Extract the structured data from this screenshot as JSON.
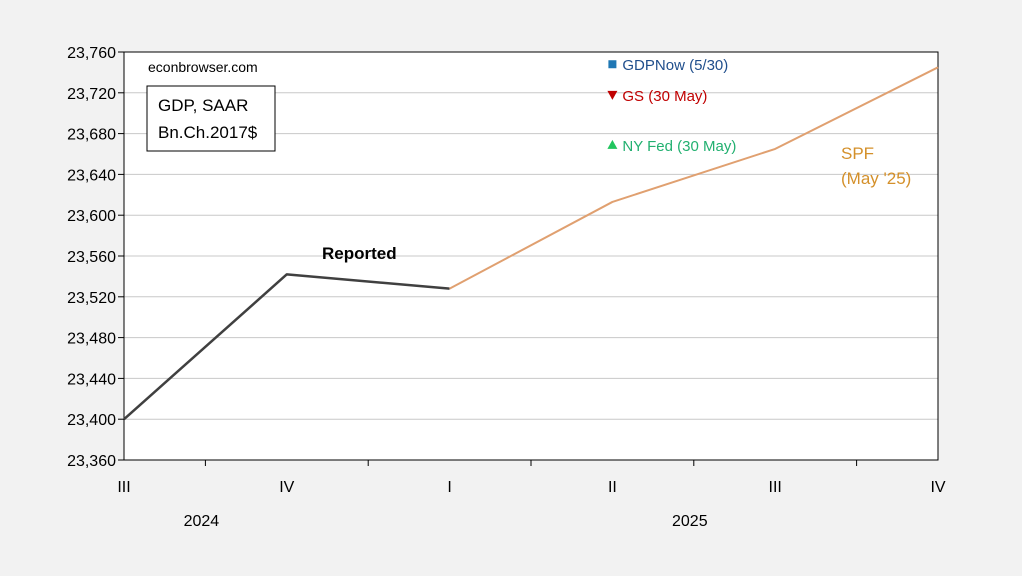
{
  "chart_data": {
    "type": "line",
    "title": "",
    "xlabel": "",
    "ylabel": "",
    "watermark": "econbrowser.com",
    "legend_box": {
      "line1": "GDP, SAAR",
      "line2": "Bn.Ch.2017$"
    },
    "ylim": [
      23360,
      23760
    ],
    "yticks": [
      23360,
      23400,
      23440,
      23480,
      23520,
      23560,
      23600,
      23640,
      23680,
      23720,
      23760
    ],
    "ytick_labels": [
      "23,360",
      "23,400",
      "23,440",
      "23,480",
      "23,520",
      "23,560",
      "23,600",
      "23,640",
      "23,680",
      "23,720",
      "23,760"
    ],
    "quarters": [
      "III",
      "IV",
      "I",
      "II",
      "III",
      "IV"
    ],
    "years": [
      {
        "label": "2024",
        "center_index": 0.5
      },
      {
        "label": "2025",
        "center_index": 3.5
      }
    ],
    "grid": {
      "horizontal": true,
      "vertical": false
    },
    "series": [
      {
        "name": "Reported",
        "color": "#404040",
        "x_index": [
          0,
          1,
          2
        ],
        "values": [
          23400,
          23542,
          23528
        ]
      },
      {
        "name": "SPF",
        "name_line2": "(May '25)",
        "color": "#e0a070",
        "label_color": "#d4902a",
        "x_index": [
          2,
          3,
          4,
          5
        ],
        "values": [
          23528,
          23613,
          23665,
          23745
        ]
      }
    ],
    "nowcasts": [
      {
        "label": "GDPNow (5/30)",
        "x_index": 3,
        "value": 23748,
        "marker": "square",
        "color": "#1f77b4",
        "text_color": "#1f4e8c"
      },
      {
        "label": "GS (30 May)",
        "x_index": 3,
        "value": 23718,
        "marker": "triangle-down",
        "color": "#c00000",
        "text_color": "#c00000"
      },
      {
        "label": "NY Fed (30 May)",
        "x_index": 3,
        "value": 23669,
        "marker": "triangle-up",
        "color": "#22c55e",
        "text_color": "#22b070"
      }
    ]
  }
}
